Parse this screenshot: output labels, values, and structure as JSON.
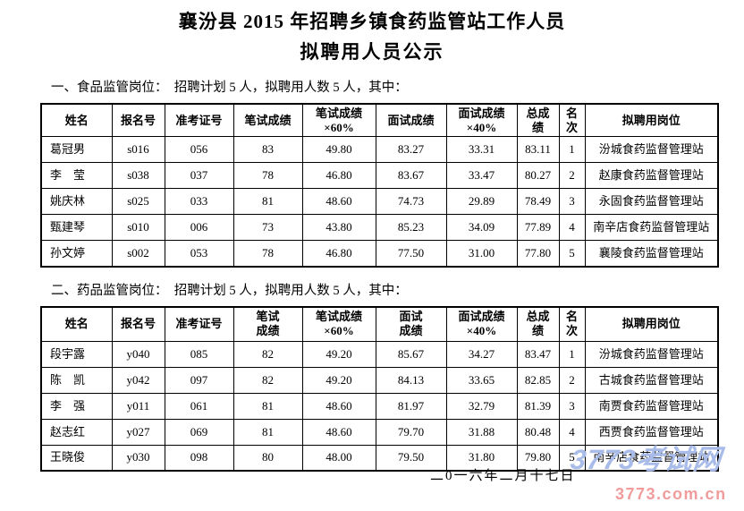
{
  "page": {
    "title_line1": "襄汾县 2015 年招聘乡镇食药监管站工作人员",
    "title_line2": "拟聘用人员公示",
    "footer_date": "二0一六年二月十七日"
  },
  "sections": [
    {
      "heading": "一、食品监管岗位：  招聘计划 5 人，拟聘用人数 5 人，其中："
    },
    {
      "heading": "二、药品监管岗位：  招聘计划 5 人，拟聘用人数 5 人，其中："
    }
  ],
  "tables": [
    {
      "name": "食品监管岗位拟聘用人员",
      "columns": [
        "姓名",
        "报名号",
        "准考证号",
        "笔试成绩",
        "笔试成绩\n×60%",
        "面试成绩",
        "面试成绩\n×40%",
        "总成\n绩",
        "名\n次",
        "拟聘用岗位"
      ],
      "rows": [
        [
          "葛冠男",
          "s016",
          "056",
          "83",
          "49.80",
          "83.27",
          "33.31",
          "83.11",
          "1",
          "汾城食药监督管理站"
        ],
        [
          "李　莹",
          "s038",
          "037",
          "78",
          "46.80",
          "83.67",
          "33.47",
          "80.27",
          "2",
          "赵康食药监督管理站"
        ],
        [
          "姚庆林",
          "s025",
          "033",
          "81",
          "48.60",
          "74.73",
          "29.89",
          "78.49",
          "3",
          "永固食药监督管理站"
        ],
        [
          "甄建琴",
          "s010",
          "006",
          "73",
          "43.80",
          "85.23",
          "34.09",
          "77.89",
          "4",
          "南辛店食药监督管理站"
        ],
        [
          "孙文婷",
          "s002",
          "053",
          "78",
          "46.80",
          "77.50",
          "31.00",
          "77.80",
          "5",
          "襄陵食药监督管理站"
        ]
      ]
    },
    {
      "name": "药品监管岗位拟聘用人员",
      "columns": [
        "姓名",
        "报名号",
        "准考证号",
        "笔试\n成绩",
        "笔试成绩\n×60%",
        "面试\n成绩",
        "面试成绩\n×40%",
        "总成\n绩",
        "名\n次",
        "拟聘用岗位"
      ],
      "rows": [
        [
          "段宇露",
          "y040",
          "085",
          "82",
          "49.20",
          "85.67",
          "34.27",
          "83.47",
          "1",
          "汾城食药监督管理站"
        ],
        [
          "陈　凯",
          "y042",
          "097",
          "82",
          "49.20",
          "84.13",
          "33.65",
          "82.85",
          "2",
          "古城食药监督管理站"
        ],
        [
          "李　强",
          "y011",
          "061",
          "81",
          "48.60",
          "81.97",
          "32.79",
          "81.39",
          "3",
          "南贾食药监督管理站"
        ],
        [
          "赵志红",
          "y027",
          "069",
          "81",
          "48.60",
          "79.70",
          "31.88",
          "80.48",
          "4",
          "西贾食药监督管理站"
        ],
        [
          "王晓俊",
          "y030",
          "098",
          "80",
          "48.00",
          "79.50",
          "31.80",
          "79.80",
          "5",
          "南辛店食药监督管理站"
        ]
      ]
    }
  ],
  "watermark": {
    "line1": "3773考试网",
    "line2": "3773.com.cn",
    "line1_color": "#a9bce9",
    "line2_color": "#f19c9c"
  }
}
